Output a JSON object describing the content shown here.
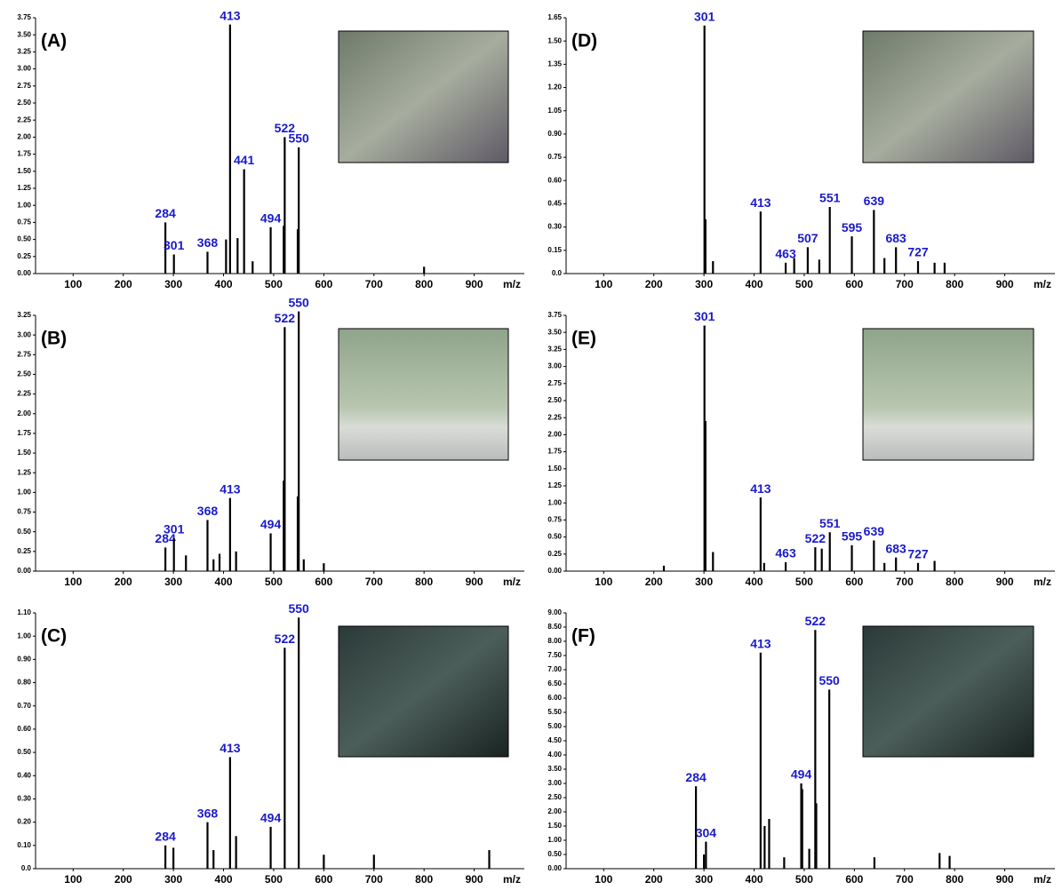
{
  "chart_data": [
    {
      "type": "bar",
      "title": "(A)",
      "x_label": "m/z",
      "color": "#000000",
      "label_color": "#1a1acc",
      "xlim": [
        25,
        1000
      ],
      "xticks": [
        100,
        200,
        300,
        400,
        500,
        600,
        700,
        800,
        900
      ],
      "ylim": [
        0,
        3.75
      ],
      "yticks": [
        {
          "value": 0,
          "label": "0.00"
        },
        {
          "value": 0.25,
          "label": "0.25"
        },
        {
          "value": 0.5,
          "label": "0.50"
        },
        {
          "value": 0.75,
          "label": "0.75"
        },
        {
          "value": 1,
          "label": "1.00"
        },
        {
          "value": 1.25,
          "label": "1.25"
        },
        {
          "value": 1.5,
          "label": "1.50"
        },
        {
          "value": 1.75,
          "label": "1.75"
        },
        {
          "value": 2,
          "label": "2.00"
        },
        {
          "value": 2.25,
          "label": "2.25"
        },
        {
          "value": 2.5,
          "label": "2.50"
        },
        {
          "value": 2.75,
          "label": "2.75"
        },
        {
          "value": 3,
          "label": "3.00"
        },
        {
          "value": 3.25,
          "label": "3.25"
        },
        {
          "value": 3.5,
          "label": "3.50"
        },
        {
          "value": 3.75,
          "label": "3.75"
        }
      ],
      "peaks": {
        "x": [
          284,
          301,
          368,
          413,
          441,
          494,
          522,
          550
        ],
        "values": [
          0.75,
          0.28,
          0.32,
          3.65,
          1.53,
          0.68,
          2.0,
          1.85
        ]
      },
      "other_peaks": {
        "x": [
          405,
          428,
          458,
          520,
          548,
          800
        ],
        "values": [
          0.5,
          0.52,
          0.18,
          0.7,
          0.65,
          0.1
        ]
      }
    },
    {
      "type": "bar",
      "title": "(B)",
      "x_label": "m/z",
      "color": "#000000",
      "label_color": "#1a1acc",
      "xlim": [
        25,
        1000
      ],
      "xticks": [
        100,
        200,
        300,
        400,
        500,
        600,
        700,
        800,
        900
      ],
      "ylim": [
        0,
        3.25
      ],
      "yticks": [
        {
          "value": 0,
          "label": "0.00"
        },
        {
          "value": 0.25,
          "label": "0.25"
        },
        {
          "value": 0.5,
          "label": "0.50"
        },
        {
          "value": 0.75,
          "label": "0.75"
        },
        {
          "value": 1,
          "label": "1.00"
        },
        {
          "value": 1.25,
          "label": "1.25"
        },
        {
          "value": 1.5,
          "label": "1.50"
        },
        {
          "value": 1.75,
          "label": "1.75"
        },
        {
          "value": 2,
          "label": "2.00"
        },
        {
          "value": 2.25,
          "label": "2.25"
        },
        {
          "value": 2.5,
          "label": "2.50"
        },
        {
          "value": 2.75,
          "label": "2.75"
        },
        {
          "value": 3,
          "label": "3.00"
        },
        {
          "value": 3.25,
          "label": "3.25"
        }
      ],
      "peaks": {
        "x": [
          284,
          301,
          368,
          413,
          494,
          522,
          550
        ],
        "values": [
          0.3,
          0.42,
          0.65,
          0.93,
          0.48,
          3.1,
          3.3
        ]
      },
      "other_peaks": {
        "x": [
          325,
          380,
          392,
          425,
          520,
          548,
          560,
          600
        ],
        "values": [
          0.2,
          0.15,
          0.22,
          0.25,
          1.15,
          0.95,
          0.15,
          0.1
        ]
      }
    },
    {
      "type": "bar",
      "title": "(C)",
      "x_label": "m/z",
      "color": "#000000",
      "label_color": "#1a1acc",
      "xlim": [
        25,
        1000
      ],
      "xticks": [
        100,
        200,
        300,
        400,
        500,
        600,
        700,
        800,
        900
      ],
      "ylim": [
        0,
        1.1
      ],
      "yticks": [
        {
          "value": 0,
          "label": "0.0"
        },
        {
          "value": 0.1,
          "label": "0.10"
        },
        {
          "value": 0.2,
          "label": "0.20"
        },
        {
          "value": 0.3,
          "label": "0.30"
        },
        {
          "value": 0.4,
          "label": "0.40"
        },
        {
          "value": 0.5,
          "label": "0.50"
        },
        {
          "value": 0.6,
          "label": "0.60"
        },
        {
          "value": 0.7,
          "label": "0.70"
        },
        {
          "value": 0.8,
          "label": "0.80"
        },
        {
          "value": 0.9,
          "label": "0.90"
        },
        {
          "value": 1,
          "label": "1.00"
        },
        {
          "value": 1.1,
          "label": "1.10"
        }
      ],
      "peaks": {
        "x": [
          284,
          368,
          413,
          494,
          522,
          550
        ],
        "values": [
          0.1,
          0.2,
          0.48,
          0.18,
          0.95,
          1.08
        ]
      },
      "other_peaks": {
        "x": [
          300,
          380,
          425,
          600,
          700,
          930
        ],
        "values": [
          0.09,
          0.08,
          0.14,
          0.06,
          0.06,
          0.08
        ]
      }
    },
    {
      "type": "bar",
      "title": "(D)",
      "x_label": "m/z",
      "color": "#000000",
      "label_color": "#1a1acc",
      "xlim": [
        25,
        1000
      ],
      "xticks": [
        100,
        200,
        300,
        400,
        500,
        600,
        700,
        800,
        900
      ],
      "ylim": [
        0,
        1.65
      ],
      "yticks": [
        {
          "value": 0,
          "label": "0.0"
        },
        {
          "value": 0.15,
          "label": "0.15"
        },
        {
          "value": 0.3,
          "label": "0.30"
        },
        {
          "value": 0.45,
          "label": "0.45"
        },
        {
          "value": 0.6,
          "label": "0.60"
        },
        {
          "value": 0.75,
          "label": "0.75"
        },
        {
          "value": 0.9,
          "label": "0.90"
        },
        {
          "value": 1.05,
          "label": "1.05"
        },
        {
          "value": 1.2,
          "label": "1.20"
        },
        {
          "value": 1.35,
          "label": "1.35"
        },
        {
          "value": 1.5,
          "label": "1.50"
        },
        {
          "value": 1.65,
          "label": "1.65"
        }
      ],
      "peaks": {
        "x": [
          301,
          413,
          463,
          507,
          551,
          595,
          639,
          683,
          727
        ],
        "values": [
          1.6,
          0.4,
          0.07,
          0.17,
          0.43,
          0.24,
          0.41,
          0.17,
          0.08
        ]
      },
      "other_peaks": {
        "x": [
          303,
          318,
          480,
          530,
          660,
          760,
          780
        ],
        "values": [
          0.35,
          0.08,
          0.1,
          0.09,
          0.1,
          0.07,
          0.07
        ]
      }
    },
    {
      "type": "bar",
      "title": "(E)",
      "x_label": "m/z",
      "color": "#000000",
      "label_color": "#1a1acc",
      "xlim": [
        25,
        1000
      ],
      "xticks": [
        100,
        200,
        300,
        400,
        500,
        600,
        700,
        800,
        900
      ],
      "ylim": [
        0,
        3.75
      ],
      "yticks": [
        {
          "value": 0,
          "label": "0.00"
        },
        {
          "value": 0.25,
          "label": "0.25"
        },
        {
          "value": 0.5,
          "label": "0.50"
        },
        {
          "value": 0.75,
          "label": "0.75"
        },
        {
          "value": 1,
          "label": "1.00"
        },
        {
          "value": 1.25,
          "label": "1.25"
        },
        {
          "value": 1.5,
          "label": "1.50"
        },
        {
          "value": 1.75,
          "label": "1.75"
        },
        {
          "value": 2,
          "label": "2.00"
        },
        {
          "value": 2.25,
          "label": "2.25"
        },
        {
          "value": 2.5,
          "label": "2.50"
        },
        {
          "value": 2.75,
          "label": "2.75"
        },
        {
          "value": 3,
          "label": "3.00"
        },
        {
          "value": 3.25,
          "label": "3.25"
        },
        {
          "value": 3.5,
          "label": "3.50"
        },
        {
          "value": 3.75,
          "label": "3.75"
        }
      ],
      "peaks": {
        "x": [
          301,
          413,
          463,
          522,
          551,
          595,
          639,
          683,
          727
        ],
        "values": [
          3.6,
          1.08,
          0.13,
          0.35,
          0.57,
          0.38,
          0.45,
          0.2,
          0.12
        ]
      },
      "other_peaks": {
        "x": [
          220,
          303,
          318,
          420,
          535,
          660,
          760
        ],
        "values": [
          0.08,
          2.2,
          0.28,
          0.12,
          0.33,
          0.12,
          0.15
        ]
      }
    },
    {
      "type": "bar",
      "title": "(F)",
      "x_label": "m/z",
      "color": "#000000",
      "label_color": "#1a1acc",
      "xlim": [
        25,
        1000
      ],
      "xticks": [
        100,
        200,
        300,
        400,
        500,
        600,
        700,
        800,
        900
      ],
      "ylim": [
        0,
        9
      ],
      "yticks": [
        {
          "value": 0,
          "label": "0.00"
        },
        {
          "value": 0.5,
          "label": "0.50"
        },
        {
          "value": 1,
          "label": "1.00"
        },
        {
          "value": 1.5,
          "label": "1.50"
        },
        {
          "value": 2,
          "label": "2.00"
        },
        {
          "value": 2.5,
          "label": "2.50"
        },
        {
          "value": 3,
          "label": "3.00"
        },
        {
          "value": 3.5,
          "label": "3.50"
        },
        {
          "value": 4,
          "label": "4.00"
        },
        {
          "value": 4.5,
          "label": "4.50"
        },
        {
          "value": 5,
          "label": "5.00"
        },
        {
          "value": 5.5,
          "label": "5.50"
        },
        {
          "value": 6,
          "label": "6.00"
        },
        {
          "value": 6.5,
          "label": "6.50"
        },
        {
          "value": 7,
          "label": "7.00"
        },
        {
          "value": 7.5,
          "label": "7.50"
        },
        {
          "value": 8,
          "label": "8.00"
        },
        {
          "value": 8.5,
          "label": "8.50"
        },
        {
          "value": 9,
          "label": "9.00"
        }
      ],
      "peaks": {
        "x": [
          284,
          304,
          413,
          494,
          522,
          550
        ],
        "values": [
          2.9,
          0.95,
          7.6,
          3.0,
          8.4,
          6.3
        ]
      },
      "other_peaks": {
        "x": [
          300,
          421,
          430,
          460,
          496,
          510,
          524,
          640,
          770,
          790
        ],
        "values": [
          0.5,
          1.5,
          1.75,
          0.4,
          2.8,
          0.7,
          2.3,
          0.4,
          0.55,
          0.45
        ]
      }
    }
  ]
}
